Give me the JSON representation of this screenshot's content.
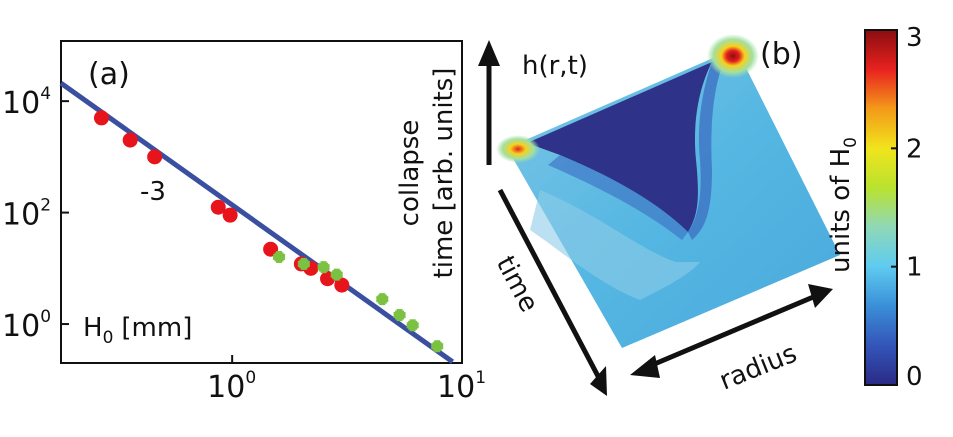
{
  "chart_data": [
    {
      "type": "scatter",
      "panel_label": "(a)",
      "title": "",
      "xlabel": "H",
      "xlabel_sub": "0",
      "xlabel_unit": "[mm]",
      "ylabel_lines": [
        "collapse",
        "time [arb. units]"
      ],
      "x_scale": "log",
      "y_scale": "log",
      "xlim": [
        0.18,
        10
      ],
      "ylim": [
        0.2,
        120000
      ],
      "x_ticks": [
        {
          "value": 1,
          "base": "10",
          "exp": "0"
        },
        {
          "value": 10,
          "base": "10",
          "exp": "1"
        }
      ],
      "y_ticks": [
        {
          "value": 1,
          "base": "10",
          "exp": "0"
        },
        {
          "value": 100,
          "base": "10",
          "exp": "2"
        },
        {
          "value": 10000,
          "base": "10",
          "exp": "4"
        }
      ],
      "fit_line": {
        "slope": -3,
        "label": "-3",
        "x": [
          0.18,
          9.1
        ],
        "y": [
          21000,
          0.21
        ],
        "color": "#3a4fa0"
      },
      "series": [
        {
          "name": "red",
          "color": "#e8141c",
          "marker": "circle",
          "x": [
            0.27,
            0.36,
            0.46,
            0.87,
            0.98,
            1.47,
            2.0,
            2.2,
            2.6,
            3.0
          ],
          "y": [
            5000,
            2000,
            1000,
            125,
            90,
            22,
            12,
            10,
            6.5,
            5
          ]
        },
        {
          "name": "green",
          "color": "#7cc242",
          "marker": "plus",
          "x": [
            1.6,
            2.05,
            2.5,
            2.85,
            4.5,
            5.35,
            6.1,
            7.8
          ],
          "y": [
            16,
            12,
            10.5,
            7.7,
            2.8,
            1.45,
            0.95,
            0.4
          ]
        }
      ]
    },
    {
      "type": "heatmap",
      "panel_label": "(b)",
      "z_label": "h(r,t)",
      "time_label": "time",
      "radius_label": "radius",
      "colorbar": {
        "label": "units of H",
        "label_sub": "0",
        "range": [
          0,
          3
        ],
        "ticks": [
          "0",
          "1",
          "2",
          "3"
        ],
        "colors": [
          "#2a2a86",
          "#3355b8",
          "#3a8fd8",
          "#5fcbf0",
          "#8fd8b8",
          "#b9e22e",
          "#f1e41c",
          "#f39a1a",
          "#e8221f",
          "#8a0d10"
        ]
      },
      "surface_colors": {
        "trench": "#2e3288",
        "body": "#55b7e2",
        "body_light": "#8ccce8",
        "mid": "#3f77c6",
        "corner_hot": "#e61e1e",
        "corner_warm": "#f4d21e"
      }
    }
  ]
}
